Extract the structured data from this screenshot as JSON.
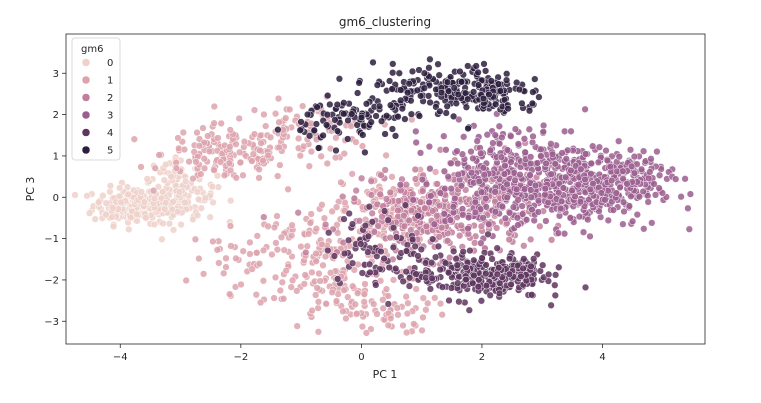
{
  "chart_data": {
    "type": "scatter",
    "title": "gm6_clustering",
    "xlabel": "PC 1",
    "ylabel": "PC 3",
    "xlim": [
      -4.9,
      5.7
    ],
    "ylim": [
      -3.55,
      3.95
    ],
    "xticks": [
      -4,
      -2,
      0,
      2,
      4
    ],
    "yticks": [
      -3,
      -2,
      -1,
      0,
      1,
      2,
      3
    ],
    "grid": false,
    "legend": {
      "title": "gm6",
      "placement": "top-left"
    },
    "point_alpha": 0.85,
    "point_outline": "#ffffff",
    "series": [
      {
        "name": "0",
        "color": "#efd1ca",
        "clusters": [
          {
            "cx": -3.75,
            "cy": -0.2,
            "sx": 0.35,
            "sy": 0.22,
            "n": 190
          },
          {
            "cx": -3.0,
            "cy": 0.0,
            "sx": 0.3,
            "sy": 0.3,
            "n": 110
          },
          {
            "cx": -3.15,
            "cy": 0.5,
            "sx": 0.25,
            "sy": 0.2,
            "n": 30
          }
        ]
      },
      {
        "name": "1",
        "color": "#dda3ad",
        "clusters": [
          {
            "cx": -2.2,
            "cy": 1.05,
            "sx": 0.55,
            "sy": 0.35,
            "n": 150
          },
          {
            "cx": -0.9,
            "cy": 1.6,
            "sx": 0.55,
            "sy": 0.35,
            "n": 90
          },
          {
            "cx": -0.6,
            "cy": -1.4,
            "sx": 0.6,
            "sy": 0.65,
            "n": 150
          },
          {
            "cx": -0.2,
            "cy": -2.55,
            "sx": 0.6,
            "sy": 0.3,
            "n": 70
          },
          {
            "cx": 0.6,
            "cy": -0.3,
            "sx": 0.45,
            "sy": 0.45,
            "n": 120
          },
          {
            "cx": -1.9,
            "cy": -1.5,
            "sx": 0.45,
            "sy": 0.4,
            "n": 40
          },
          {
            "cx": 0.7,
            "cy": -2.9,
            "sx": 0.4,
            "sy": 0.2,
            "n": 20
          }
        ]
      },
      {
        "name": "2",
        "color": "#c17f9c",
        "clusters": [
          {
            "cx": 1.2,
            "cy": -0.55,
            "sx": 0.75,
            "sy": 0.45,
            "n": 300
          },
          {
            "cx": 2.2,
            "cy": 0.15,
            "sx": 0.6,
            "sy": 0.4,
            "n": 150
          }
        ]
      },
      {
        "name": "3",
        "color": "#9b5e8f",
        "clusters": [
          {
            "cx": 3.6,
            "cy": 0.2,
            "sx": 0.65,
            "sy": 0.45,
            "n": 400
          },
          {
            "cx": 2.6,
            "cy": 0.9,
            "sx": 0.7,
            "sy": 0.45,
            "n": 200
          },
          {
            "cx": 4.5,
            "cy": 0.6,
            "sx": 0.35,
            "sy": 0.25,
            "n": 60
          },
          {
            "cx": 1.9,
            "cy": -0.1,
            "sx": 0.5,
            "sy": 0.4,
            "n": 70
          }
        ]
      },
      {
        "name": "4",
        "color": "#5e355e",
        "clusters": [
          {
            "cx": 1.9,
            "cy": -1.9,
            "sx": 0.55,
            "sy": 0.28,
            "n": 260
          },
          {
            "cx": 0.4,
            "cy": -1.2,
            "sx": 0.5,
            "sy": 0.45,
            "n": 80
          },
          {
            "cx": 2.6,
            "cy": -1.75,
            "sx": 0.3,
            "sy": 0.2,
            "n": 40
          }
        ]
      },
      {
        "name": "5",
        "color": "#2d1e3e",
        "clusters": [
          {
            "cx": 1.4,
            "cy": 2.6,
            "sx": 0.6,
            "sy": 0.3,
            "n": 190
          },
          {
            "cx": -0.1,
            "cy": 1.9,
            "sx": 0.45,
            "sy": 0.3,
            "n": 100
          },
          {
            "cx": 2.2,
            "cy": 2.4,
            "sx": 0.4,
            "sy": 0.25,
            "n": 50
          }
        ]
      }
    ]
  }
}
